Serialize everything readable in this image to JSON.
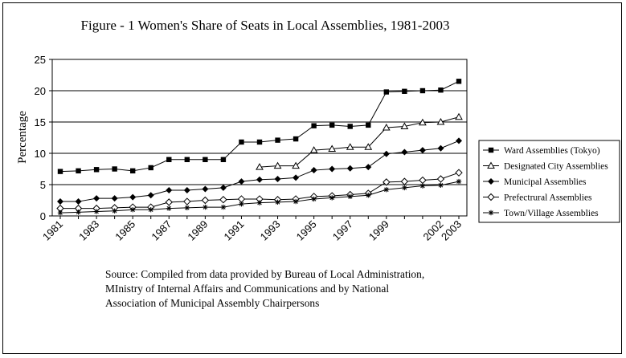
{
  "chart_data": {
    "type": "line",
    "title": "Figure - 1 Women's Share of Seats in Local Assemblies, 1981-2003",
    "xlabel": "",
    "ylabel": "Percentage",
    "ylim": [
      0,
      25
    ],
    "yticks": [
      0,
      5,
      10,
      15,
      20,
      25
    ],
    "xlim": [
      1981,
      2003
    ],
    "xtick_labels": [
      "1981",
      "1983",
      "1985",
      "1987",
      "1989",
      "1991",
      "1993",
      "1995",
      "1997",
      "1999",
      "2002",
      "2003"
    ],
    "grid": "horizontal",
    "legend_position": "right",
    "series": [
      {
        "name": "Ward Assemblies (Tokyo)",
        "marker": "square",
        "x": [
          1981,
          1982,
          1983,
          1984,
          1985,
          1986,
          1987,
          1988,
          1989,
          1990,
          1991,
          1992,
          1993,
          1994,
          1995,
          1996,
          1997,
          1998,
          1999,
          2000,
          2001,
          2002,
          2003
        ],
        "values": [
          7.1,
          7.2,
          7.4,
          7.5,
          7.2,
          7.7,
          9.0,
          9.0,
          9.0,
          9.0,
          11.8,
          11.8,
          12.1,
          12.3,
          14.4,
          14.5,
          14.3,
          14.5,
          19.8,
          19.9,
          20.0,
          20.1,
          21.5
        ]
      },
      {
        "name": "Designated City Assemblies",
        "marker": "triangle",
        "x": [
          1992,
          1993,
          1994,
          1995,
          1996,
          1997,
          1998,
          1999,
          2000,
          2001,
          2002,
          2003
        ],
        "values": [
          7.8,
          8.0,
          8.0,
          10.5,
          10.7,
          11.0,
          11.0,
          14.1,
          14.3,
          14.9,
          15.0,
          15.8
        ]
      },
      {
        "name": "Municipal Assemblies",
        "marker": "diamond-filled",
        "x": [
          1981,
          1982,
          1983,
          1984,
          1985,
          1986,
          1987,
          1988,
          1989,
          1990,
          1991,
          1992,
          1993,
          1994,
          1995,
          1996,
          1997,
          1998,
          1999,
          2000,
          2001,
          2002,
          2003
        ],
        "values": [
          2.3,
          2.3,
          2.8,
          2.8,
          3.0,
          3.3,
          4.1,
          4.1,
          4.3,
          4.5,
          5.5,
          5.8,
          5.9,
          6.1,
          7.3,
          7.5,
          7.6,
          7.8,
          9.9,
          10.2,
          10.5,
          10.8,
          12.0
        ]
      },
      {
        "name": "Prefectrural Assemblies",
        "marker": "diamond-open",
        "x": [
          1981,
          1982,
          1983,
          1984,
          1985,
          1986,
          1987,
          1988,
          1989,
          1990,
          1991,
          1992,
          1993,
          1994,
          1995,
          1996,
          1997,
          1998,
          1999,
          2000,
          2001,
          2002,
          2003
        ],
        "values": [
          1.2,
          1.2,
          1.2,
          1.3,
          1.4,
          1.4,
          2.2,
          2.3,
          2.5,
          2.6,
          2.7,
          2.7,
          2.6,
          2.7,
          3.1,
          3.2,
          3.4,
          3.6,
          5.4,
          5.5,
          5.7,
          5.9,
          6.9
        ]
      },
      {
        "name": "Town/Village Assemblies",
        "marker": "star",
        "x": [
          1981,
          1982,
          1983,
          1984,
          1985,
          1986,
          1987,
          1988,
          1989,
          1990,
          1991,
          1992,
          1993,
          1994,
          1995,
          1996,
          1997,
          1998,
          1999,
          2000,
          2001,
          2002,
          2003
        ],
        "values": [
          0.5,
          0.6,
          0.7,
          0.8,
          1.0,
          1.0,
          1.2,
          1.3,
          1.4,
          1.4,
          1.9,
          2.1,
          2.2,
          2.3,
          2.7,
          2.9,
          3.1,
          3.3,
          4.2,
          4.5,
          4.8,
          4.9,
          5.5
        ]
      }
    ]
  },
  "source": {
    "line1": "Source: Compiled from data provided by Bureau of Local Administration,",
    "line2": "MInistry of Internal Affairs and Communications and by National",
    "line3": "Association of Municipal Assembly Chairpersons"
  }
}
